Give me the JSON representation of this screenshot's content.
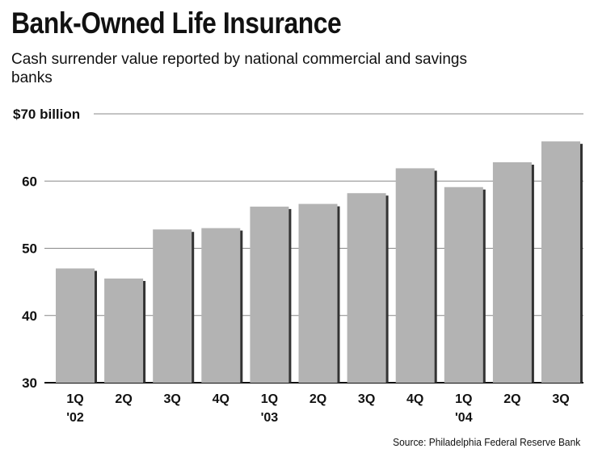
{
  "chart_data": {
    "type": "bar",
    "title": "Bank-Owned Life Insurance",
    "subtitle": "Cash surrender value reported by national commercial and savings banks",
    "source": "Source: Philadelphia Federal Reserve Bank",
    "ylabel": "",
    "xlabel": "",
    "ylim": [
      30,
      70
    ],
    "yticks": [
      30,
      40,
      50,
      60,
      70
    ],
    "ytick_labels": [
      "30",
      "40",
      "50",
      "60",
      "$70 billion"
    ],
    "grid": true,
    "categories": [
      {
        "quarter": "1Q",
        "year": "'02"
      },
      {
        "quarter": "2Q",
        "year": ""
      },
      {
        "quarter": "3Q",
        "year": ""
      },
      {
        "quarter": "4Q",
        "year": ""
      },
      {
        "quarter": "1Q",
        "year": "'03"
      },
      {
        "quarter": "2Q",
        "year": ""
      },
      {
        "quarter": "3Q",
        "year": ""
      },
      {
        "quarter": "4Q",
        "year": ""
      },
      {
        "quarter": "1Q",
        "year": "'04"
      },
      {
        "quarter": "2Q",
        "year": ""
      },
      {
        "quarter": "3Q",
        "year": ""
      }
    ],
    "values": [
      47,
      45.5,
      52.8,
      53,
      56.2,
      56.6,
      58.2,
      61.9,
      59.1,
      62.8,
      65.9
    ],
    "bar_color": "#b3b3b3",
    "shadow_color": "#333333",
    "grid_color": "#888888"
  }
}
